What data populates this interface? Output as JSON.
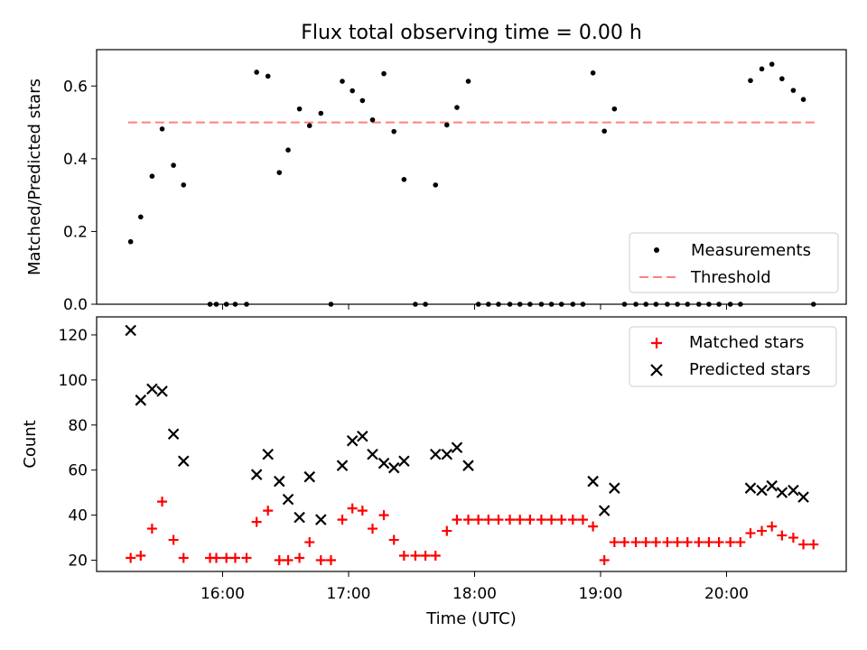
{
  "figure": {
    "title": "Flux total observing time = 0.00 h",
    "xlabel": "Time (UTC)"
  },
  "colors": {
    "measurement": "#000000",
    "threshold": "#ff7f7f",
    "matched": "#ff0000",
    "predicted": "#000000"
  },
  "chart_data": [
    {
      "type": "scatter",
      "panel": "top",
      "ylabel": "Matched/Predicted stars",
      "xlim": [
        15.0,
        20.95
      ],
      "ylim": [
        0.0,
        0.7
      ],
      "yticks": [
        0.0,
        0.2,
        0.4,
        0.6
      ],
      "ytick_labels": [
        "0.0",
        "0.2",
        "0.4",
        "0.6"
      ],
      "legend": {
        "position": "lower-right",
        "entries": [
          "Measurements",
          "Threshold"
        ]
      },
      "threshold": {
        "name": "Threshold",
        "value": 0.5,
        "x_start": 15.25,
        "x_end": 20.7
      },
      "series": [
        {
          "name": "Measurements",
          "x": [
            15.27,
            15.35,
            15.44,
            15.52,
            15.61,
            15.69,
            15.9,
            15.95,
            16.03,
            16.1,
            16.19,
            16.27,
            16.36,
            16.45,
            16.52,
            16.61,
            16.69,
            16.78,
            16.86,
            16.95,
            17.03,
            17.11,
            17.19,
            17.28,
            17.36,
            17.44,
            17.53,
            17.61,
            17.69,
            17.78,
            17.86,
            17.95,
            18.03,
            18.11,
            18.19,
            18.28,
            18.36,
            18.44,
            18.53,
            18.61,
            18.69,
            18.78,
            18.86,
            18.94,
            19.03,
            19.11,
            19.19,
            19.28,
            19.36,
            19.44,
            19.53,
            19.61,
            19.69,
            19.78,
            19.86,
            19.94,
            20.03,
            20.11,
            20.19,
            20.28,
            20.36,
            20.44,
            20.53,
            20.61,
            20.69
          ],
          "y": [
            0.172,
            0.24,
            0.352,
            0.482,
            0.382,
            0.328,
            0.0,
            0.0,
            0.0,
            0.0,
            0.0,
            0.638,
            0.627,
            0.362,
            0.424,
            0.537,
            0.491,
            0.525,
            0.0,
            0.613,
            0.587,
            0.56,
            0.507,
            0.634,
            0.475,
            0.343,
            0.0,
            0.0,
            0.328,
            0.493,
            0.541,
            0.613,
            0.0,
            0.0,
            0.0,
            0.0,
            0.0,
            0.0,
            0.0,
            0.0,
            0.0,
            0.0,
            0.0,
            0.636,
            0.476,
            0.537,
            0.0,
            0.0,
            0.0,
            0.0,
            0.0,
            0.0,
            0.0,
            0.0,
            0.0,
            0.0,
            0.0,
            0.0,
            0.615,
            0.647,
            0.66,
            0.62,
            0.588,
            0.563,
            0.0
          ]
        }
      ]
    },
    {
      "type": "scatter",
      "panel": "bottom",
      "ylabel": "Count",
      "xlim": [
        15.0,
        20.95
      ],
      "ylim": [
        15,
        128
      ],
      "yticks": [
        20,
        40,
        60,
        80,
        100,
        120
      ],
      "ytick_labels": [
        "20",
        "40",
        "60",
        "80",
        "100",
        "120"
      ],
      "xticks": [
        16,
        17,
        18,
        19,
        20
      ],
      "xtick_labels": [
        "16:00",
        "17:00",
        "18:00",
        "19:00",
        "20:00"
      ],
      "legend": {
        "position": "upper-right",
        "entries": [
          "Matched stars",
          "Predicted stars"
        ]
      },
      "series": [
        {
          "name": "Matched stars",
          "x": [
            15.27,
            15.35,
            15.44,
            15.52,
            15.61,
            15.69,
            15.9,
            15.95,
            16.03,
            16.1,
            16.19,
            16.27,
            16.36,
            16.45,
            16.52,
            16.61,
            16.69,
            16.78,
            16.86,
            16.95,
            17.03,
            17.11,
            17.19,
            17.28,
            17.36,
            17.44,
            17.53,
            17.61,
            17.69,
            17.78,
            17.86,
            17.95,
            18.03,
            18.11,
            18.19,
            18.28,
            18.36,
            18.44,
            18.53,
            18.61,
            18.69,
            18.78,
            18.86,
            18.94,
            19.03,
            19.11,
            19.19,
            19.28,
            19.36,
            19.44,
            19.53,
            19.61,
            19.69,
            19.78,
            19.86,
            19.94,
            20.03,
            20.11,
            20.19,
            20.28,
            20.36,
            20.44,
            20.53,
            20.61,
            20.69
          ],
          "y": [
            21,
            22,
            34,
            46,
            29,
            21,
            21,
            21,
            21,
            21,
            21,
            37,
            42,
            20,
            20,
            21,
            28,
            20,
            20,
            38,
            43,
            42,
            34,
            40,
            29,
            22,
            22,
            22,
            22,
            33,
            38,
            38,
            38,
            38,
            38,
            38,
            38,
            38,
            38,
            38,
            38,
            38,
            38,
            35,
            20,
            28,
            28,
            28,
            28,
            28,
            28,
            28,
            28,
            28,
            28,
            28,
            28,
            28,
            32,
            33,
            35,
            31,
            30,
            27,
            27
          ]
        },
        {
          "name": "Predicted stars",
          "x": [
            15.27,
            15.35,
            15.44,
            15.52,
            15.61,
            15.69,
            16.27,
            16.36,
            16.45,
            16.52,
            16.61,
            16.69,
            16.78,
            16.95,
            17.03,
            17.11,
            17.19,
            17.28,
            17.36,
            17.44,
            17.69,
            17.78,
            17.86,
            17.95,
            18.94,
            19.03,
            19.11,
            20.19,
            20.28,
            20.36,
            20.44,
            20.53,
            20.61
          ],
          "y": [
            122,
            91,
            96,
            95,
            76,
            64,
            58,
            67,
            55,
            47,
            39,
            57,
            38,
            62,
            73,
            75,
            67,
            63,
            61,
            64,
            67,
            67,
            70,
            62,
            55,
            42,
            52,
            52,
            51,
            53,
            50,
            51,
            48
          ]
        }
      ]
    }
  ]
}
